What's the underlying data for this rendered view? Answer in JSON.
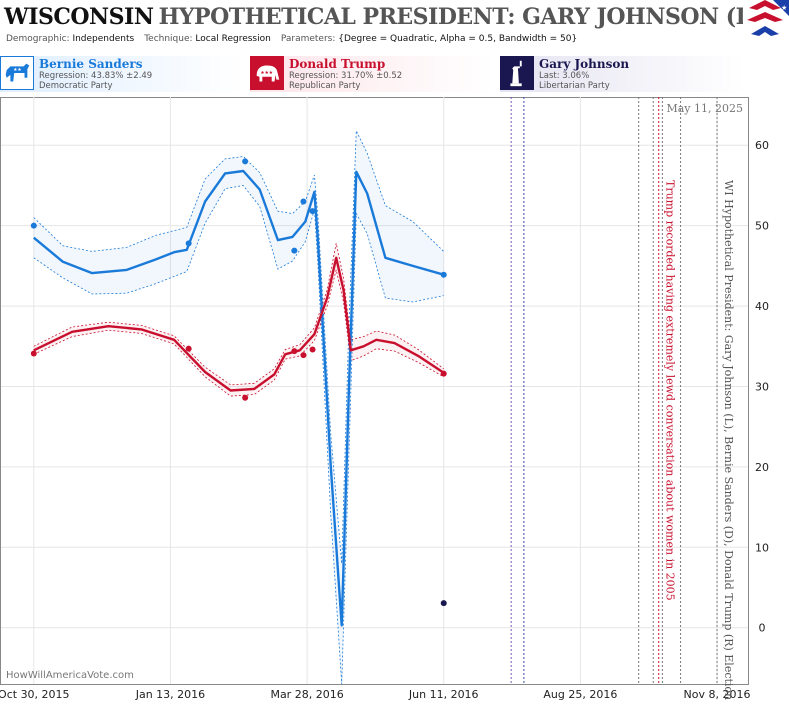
{
  "header": {
    "state": "WISCONSIN",
    "title": "HYPOTHETICAL PRESIDENT: GARY JOHNSON (L) II"
  },
  "meta": {
    "demographic_label": "Demographic:",
    "demographic": "Independents",
    "technique_label": "Technique:",
    "technique": "Local Regression",
    "parameters_label": "Parameters:",
    "parameters": "{Degree = Quadratic, Alpha = 0.5, Bandwidth = 50}"
  },
  "candidates": [
    {
      "name": "Bernie Sanders",
      "stat": "Regression: 43.83% ±2.49",
      "party": "Democratic Party",
      "color": "#1a7ad9"
    },
    {
      "name": "Donald Trump",
      "stat": "Regression: 31.70% ±0.52",
      "party": "Republican Party",
      "color": "#c8102e"
    },
    {
      "name": "Gary Johnson",
      "stat": "Last: 3.06%",
      "party": "Libertarian Party",
      "color": "#1a1650"
    }
  ],
  "icons": {
    "dem": "donkey-icon",
    "rep": "elephant-icon",
    "lib": "statue-of-liberty-icon",
    "flag": "flag-icon"
  },
  "watermark": "HowWillAmericaVote.com",
  "date_stamp": "May 11, 2025",
  "chart_data": {
    "type": "line",
    "x_ticks": [
      "Oct 30, 2015",
      "Jan 13, 2016",
      "Mar 28, 2016",
      "Jun 11, 2016",
      "Aug 25, 2016",
      "Nov 8, 2016"
    ],
    "x_range": [
      "2015-10-12",
      "2016-11-25"
    ],
    "y_ticks": [
      0,
      10,
      20,
      30,
      40,
      50,
      60
    ],
    "ylim": [
      -7,
      66
    ],
    "grid": true,
    "series": [
      {
        "name": "Bernie Sanders",
        "color": "#1a7ad9",
        "points": [
          [
            "2015-10-30",
            50
          ],
          [
            "2016-01-23",
            47.8
          ],
          [
            "2016-02-23",
            58
          ],
          [
            "2016-03-21",
            46.9
          ],
          [
            "2016-03-26",
            53
          ],
          [
            "2016-03-31",
            51.8
          ],
          [
            "2016-06-11",
            43.9
          ]
        ],
        "trend": [
          [
            "2015-10-30",
            48.5
          ],
          [
            "2015-11-15",
            45.5
          ],
          [
            "2015-12-01",
            44.1
          ],
          [
            "2015-12-20",
            44.5
          ],
          [
            "2016-01-05",
            45.8
          ],
          [
            "2016-01-15",
            46.7
          ],
          [
            "2016-01-22",
            47
          ],
          [
            "2016-02-01",
            53
          ],
          [
            "2016-02-12",
            56.5
          ],
          [
            "2016-02-22",
            56.8
          ],
          [
            "2016-03-02",
            54.5
          ],
          [
            "2016-03-12",
            48.2
          ],
          [
            "2016-03-20",
            48.6
          ],
          [
            "2016-03-27",
            50.5
          ],
          [
            "2016-04-01",
            54.2
          ],
          [
            "2016-04-03",
            48
          ],
          [
            "2016-04-10",
            20
          ],
          [
            "2016-04-16",
            0.3
          ],
          [
            "2016-04-20",
            30
          ],
          [
            "2016-04-24",
            56.7
          ],
          [
            "2016-04-30",
            54
          ],
          [
            "2016-05-10",
            46
          ],
          [
            "2016-05-25",
            45
          ],
          [
            "2016-06-11",
            43.9
          ]
        ],
        "band_upper": [
          [
            "2015-10-30",
            51
          ],
          [
            "2015-11-15",
            47.5
          ],
          [
            "2015-12-01",
            46.8
          ],
          [
            "2015-12-20",
            47.3
          ],
          [
            "2016-01-05",
            48.8
          ],
          [
            "2016-01-22",
            49.8
          ],
          [
            "2016-02-01",
            55.8
          ],
          [
            "2016-02-12",
            58.3
          ],
          [
            "2016-02-22",
            58.6
          ],
          [
            "2016-03-02",
            56.6
          ],
          [
            "2016-03-12",
            51.8
          ],
          [
            "2016-03-20",
            51.5
          ],
          [
            "2016-03-27",
            53
          ],
          [
            "2016-04-01",
            56.3
          ],
          [
            "2016-04-03",
            51
          ],
          [
            "2016-04-10",
            24
          ],
          [
            "2016-04-16",
            8
          ],
          [
            "2016-04-20",
            38
          ],
          [
            "2016-04-24",
            61.8
          ],
          [
            "2016-04-30",
            59
          ],
          [
            "2016-05-10",
            52.5
          ],
          [
            "2016-05-25",
            50.5
          ],
          [
            "2016-06-11",
            46.8
          ]
        ],
        "band_lower": [
          [
            "2015-10-30",
            46
          ],
          [
            "2015-11-15",
            43.5
          ],
          [
            "2015-12-01",
            41.5
          ],
          [
            "2015-12-20",
            41.6
          ],
          [
            "2016-01-05",
            42.8
          ],
          [
            "2016-01-22",
            44.3
          ],
          [
            "2016-02-01",
            50.3
          ],
          [
            "2016-02-12",
            54.6
          ],
          [
            "2016-02-22",
            55
          ],
          [
            "2016-03-02",
            52.4
          ],
          [
            "2016-03-12",
            44.6
          ],
          [
            "2016-03-20",
            45.6
          ],
          [
            "2016-03-27",
            48
          ],
          [
            "2016-04-01",
            52
          ],
          [
            "2016-04-03",
            45
          ],
          [
            "2016-04-10",
            14
          ],
          [
            "2016-04-16",
            -7
          ],
          [
            "2016-04-20",
            22
          ],
          [
            "2016-04-24",
            51.5
          ],
          [
            "2016-04-30",
            49
          ],
          [
            "2016-05-10",
            41
          ],
          [
            "2016-05-25",
            40.5
          ],
          [
            "2016-06-11",
            41.3
          ]
        ]
      },
      {
        "name": "Donald Trump",
        "color": "#c8102e",
        "points": [
          [
            "2015-10-30",
            34.1
          ],
          [
            "2016-01-23",
            34.7
          ],
          [
            "2016-02-23",
            28.6
          ],
          [
            "2016-03-21",
            34.4
          ],
          [
            "2016-03-26",
            33.9
          ],
          [
            "2016-03-31",
            34.6
          ],
          [
            "2016-06-11",
            31.6
          ]
        ],
        "trend": [
          [
            "2015-10-30",
            34.5
          ],
          [
            "2015-11-20",
            36.8
          ],
          [
            "2015-12-10",
            37.5
          ],
          [
            "2015-12-28",
            37.1
          ],
          [
            "2016-01-15",
            35.8
          ],
          [
            "2016-02-01",
            31.8
          ],
          [
            "2016-02-15",
            29.5
          ],
          [
            "2016-02-28",
            29.7
          ],
          [
            "2016-03-10",
            31.5
          ],
          [
            "2016-03-16",
            34
          ],
          [
            "2016-03-24",
            34.5
          ],
          [
            "2016-04-01",
            36.5
          ],
          [
            "2016-04-08",
            41
          ],
          [
            "2016-04-13",
            46
          ],
          [
            "2016-04-17",
            42
          ],
          [
            "2016-04-21",
            34.5
          ],
          [
            "2016-04-28",
            35
          ],
          [
            "2016-05-05",
            35.8
          ],
          [
            "2016-05-15",
            35.4
          ],
          [
            "2016-05-28",
            33.8
          ],
          [
            "2016-06-11",
            31.7
          ]
        ],
        "band_upper": [
          [
            "2015-10-30",
            35
          ],
          [
            "2015-11-20",
            37.4
          ],
          [
            "2015-12-10",
            38
          ],
          [
            "2015-12-28",
            37.6
          ],
          [
            "2016-01-15",
            36.3
          ],
          [
            "2016-02-01",
            32.4
          ],
          [
            "2016-02-15",
            30.2
          ],
          [
            "2016-02-28",
            30.4
          ],
          [
            "2016-03-10",
            32.2
          ],
          [
            "2016-03-16",
            34.6
          ],
          [
            "2016-03-24",
            35.2
          ],
          [
            "2016-04-01",
            37.3
          ],
          [
            "2016-04-08",
            42
          ],
          [
            "2016-04-13",
            47.8
          ],
          [
            "2016-04-17",
            43.5
          ],
          [
            "2016-04-21",
            35.8
          ],
          [
            "2016-04-28",
            36.2
          ],
          [
            "2016-05-05",
            36.9
          ],
          [
            "2016-05-15",
            36.4
          ],
          [
            "2016-05-28",
            34.6
          ],
          [
            "2016-06-11",
            32.2
          ]
        ],
        "band_lower": [
          [
            "2015-10-30",
            34
          ],
          [
            "2015-11-20",
            36.2
          ],
          [
            "2015-12-10",
            37
          ],
          [
            "2015-12-28",
            36.6
          ],
          [
            "2016-01-15",
            35.3
          ],
          [
            "2016-02-01",
            31.2
          ],
          [
            "2016-02-15",
            28.8
          ],
          [
            "2016-02-28",
            29
          ],
          [
            "2016-03-10",
            30.8
          ],
          [
            "2016-03-16",
            33.4
          ],
          [
            "2016-03-24",
            33.8
          ],
          [
            "2016-04-01",
            35.7
          ],
          [
            "2016-04-08",
            40
          ],
          [
            "2016-04-13",
            44.5
          ],
          [
            "2016-04-17",
            40.5
          ],
          [
            "2016-04-21",
            33.2
          ],
          [
            "2016-04-28",
            33.8
          ],
          [
            "2016-05-05",
            34.7
          ],
          [
            "2016-05-15",
            34.4
          ],
          [
            "2016-05-28",
            33
          ],
          [
            "2016-06-11",
            31.2
          ]
        ]
      },
      {
        "name": "Gary Johnson",
        "color": "#1a1650",
        "points": [
          [
            "2016-06-11",
            3.06
          ]
        ]
      }
    ],
    "event_lines": [
      {
        "date": "2016-07-18",
        "color": "#7a5db5"
      },
      {
        "date": "2016-07-25",
        "color": "#3a4fa0"
      },
      {
        "date": "2016-09-26",
        "color": "#777777"
      },
      {
        "date": "2016-10-04",
        "color": "#777777"
      },
      {
        "date": "2016-10-07",
        "color": "#c8102e"
      },
      {
        "date": "2016-10-09",
        "color": "#777777"
      },
      {
        "date": "2016-10-19",
        "color": "#777777"
      },
      {
        "date": "2016-11-08",
        "color": "#777777"
      }
    ],
    "annotations": [
      {
        "date": "2016-10-07",
        "text": "Trump recorded having extremely lewd conversation about women in 2005",
        "color": "#c8102e"
      },
      {
        "date": "2016-11-08",
        "text": "WI Hypothetical President: Gary Johnson (L), Bernie Sanders (D), Donald Trump (R) Election",
        "color": "#555555"
      }
    ]
  }
}
